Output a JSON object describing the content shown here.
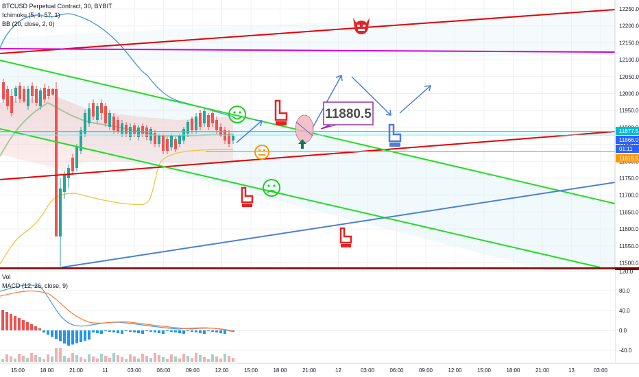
{
  "header": {
    "symbol_line": "BTCUSD Perpetual Contract, 30, BYBIT",
    "ichimoku": "Ichimoku (5, 1, 57, 1)",
    "bb": "BB (20, close, 2, 0)"
  },
  "annotation": {
    "callout_price": "11880.5"
  },
  "price_axis": {
    "ticks": [
      "12250.0",
      "12200.0",
      "12150.0",
      "12100.0",
      "12050.0",
      "12000.0",
      "11950.0",
      "11900.0",
      "11850.0",
      "11800.0",
      "11750.0",
      "11700.0",
      "11650.0",
      "11600.0",
      "11550.0",
      "11500.0"
    ],
    "badges": [
      {
        "text": "11877.5",
        "color": "#00bcd4"
      },
      {
        "text": "11866.0",
        "color": "#2962ff"
      },
      {
        "text": "01:11",
        "color": "#2962ff"
      },
      {
        "text": "11815.5",
        "color": "#ff9800"
      }
    ]
  },
  "lower_pane": {
    "vol_label": "Vol",
    "macd_label": "MACD (12, 26, close, 9)",
    "ticks": [
      "120.0",
      "80.0",
      "40.0",
      "0.0",
      "-40.0"
    ]
  },
  "time_axis": {
    "ticks": [
      "15:00",
      "18:00",
      "21:00",
      "11",
      "03:00",
      "06:00",
      "09:00",
      "12:00",
      "15:00",
      "18:00",
      "21:00",
      "12",
      "03:00",
      "06:00",
      "09:00",
      "12:00",
      "15:00",
      "18:00",
      "21:00",
      "13",
      "03:00"
    ]
  },
  "colors": {
    "red_line": "#e60000",
    "green_line": "#22dd22",
    "magenta_line": "#d500d5",
    "blue_line": "#4a7fd8",
    "cyan_line": "#00d8e8",
    "orange_line": "#ff9800"
  },
  "icons": [
    "devil-icon",
    "smiley-happy-icon",
    "smiley-neutral-icon",
    "smiley-sad-icon",
    "pointing-hand-icon",
    "up-arrow-icon"
  ]
}
